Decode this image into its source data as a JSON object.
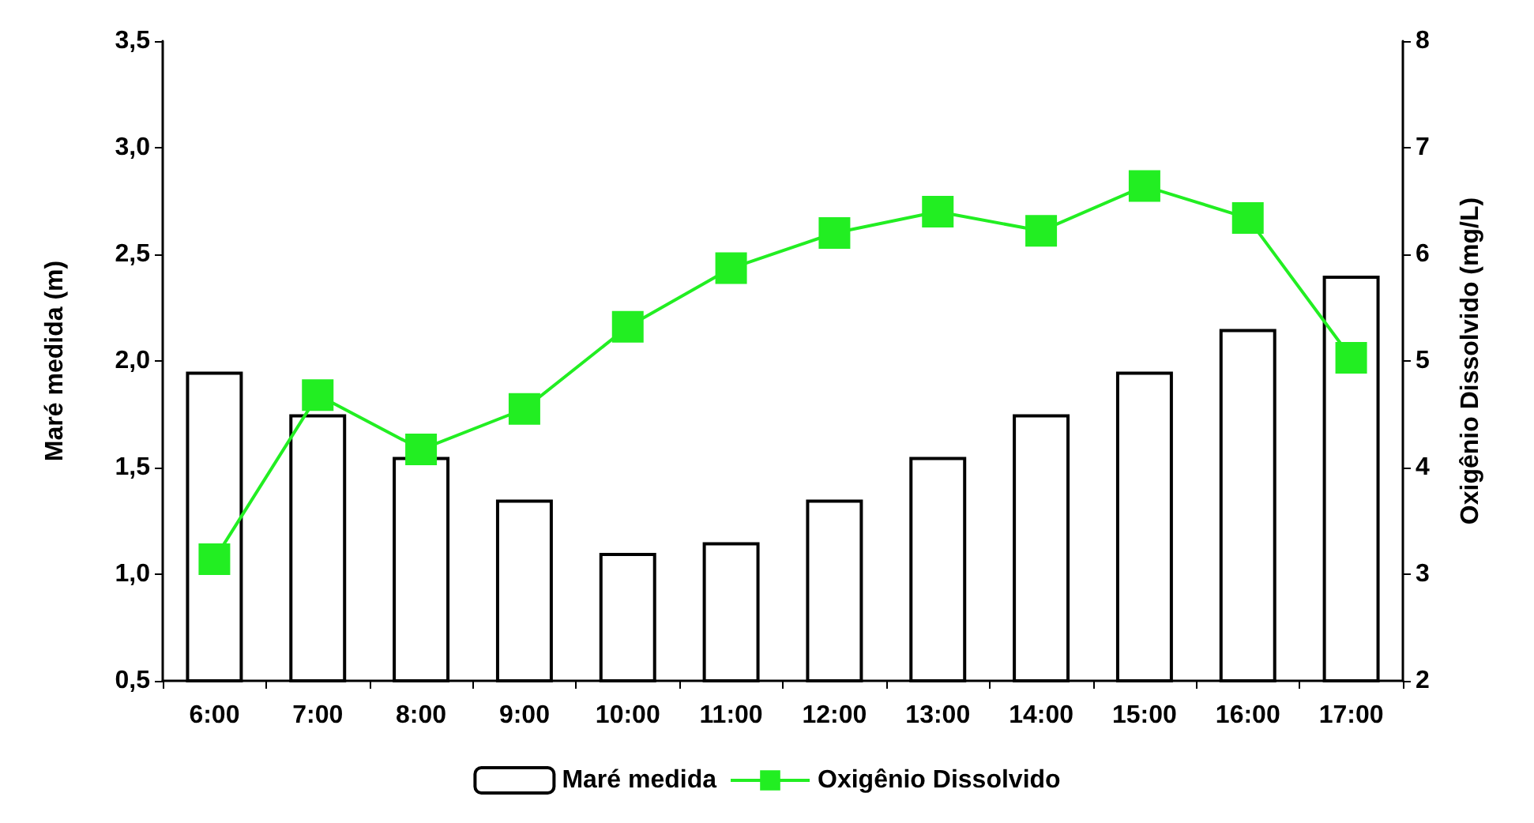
{
  "chart_data": {
    "type": "bar",
    "categories": [
      "6:00",
      "7:00",
      "8:00",
      "9:00",
      "10:00",
      "11:00",
      "12:00",
      "13:00",
      "14:00",
      "15:00",
      "16:00",
      "17:00"
    ],
    "ylabel": "Maré medida (m)",
    "y2label": "Oxigênio Dissolvido (mg/L)",
    "ylim": [
      0.5,
      3.5
    ],
    "yticks": [
      {
        "value": 0.5,
        "label": "0,5"
      },
      {
        "value": 1,
        "label": "1,0"
      },
      {
        "value": 1.5,
        "label": "1,5"
      },
      {
        "value": 2,
        "label": "2,0"
      },
      {
        "value": 2.5,
        "label": "2,5"
      },
      {
        "value": 3,
        "label": "3,0"
      },
      {
        "value": 3.5,
        "label": "3,5"
      }
    ],
    "y2lim": [
      2,
      8
    ],
    "y2ticks": [
      2,
      3,
      4,
      5,
      6,
      7,
      8
    ],
    "legend": "bottom",
    "marker": "square",
    "grid": false,
    "series": [
      {
        "name": "Maré medida",
        "color": "#ffffff",
        "values": [
          1.95,
          1.75,
          1.55,
          1.35,
          1.1,
          1.15,
          1.35,
          1.55,
          1.75,
          1.95,
          2.15,
          2.4
        ]
      },
      {
        "name": "Oxigênio Dissolvido",
        "type": "line",
        "axis": "y2",
        "color": "#22ee22",
        "values": [
          3.14,
          4.68,
          4.17,
          4.55,
          5.32,
          5.87,
          6.2,
          6.4,
          6.22,
          6.64,
          6.34,
          5.03
        ]
      }
    ]
  }
}
